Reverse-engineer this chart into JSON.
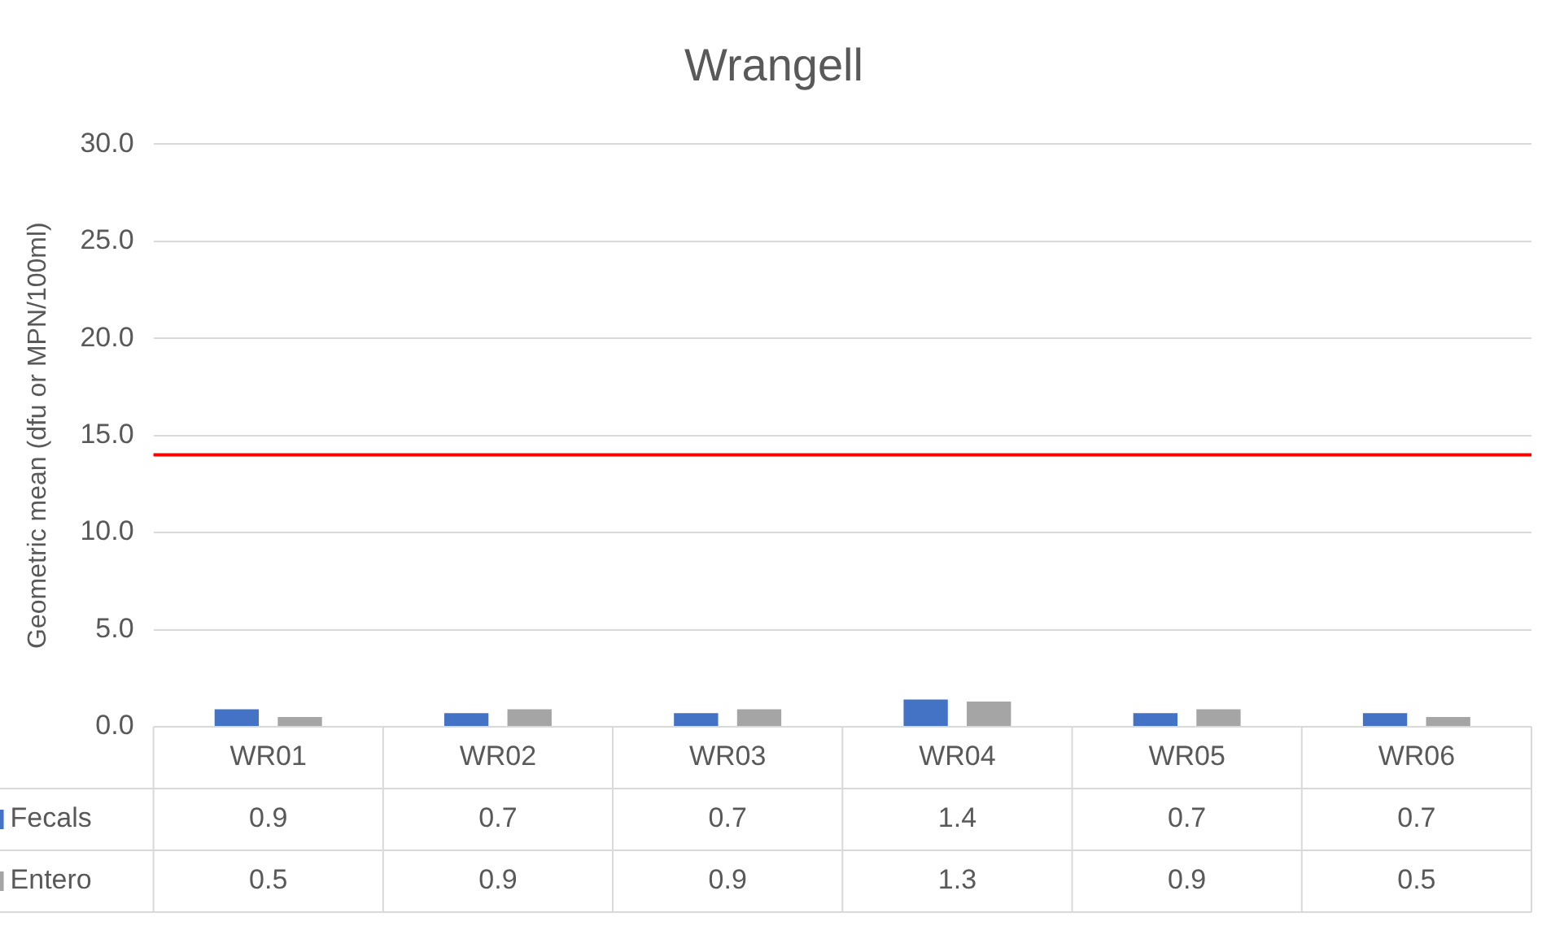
{
  "chart_data": {
    "type": "bar",
    "title": "Wrangell",
    "ylabel": "Geometric mean (dfu or MPN/100ml)",
    "categories": [
      "WR01",
      "WR02",
      "WR03",
      "WR04",
      "WR05",
      "WR06"
    ],
    "series": [
      {
        "name": "Fecals",
        "color": "#4472c4",
        "values": [
          0.9,
          0.7,
          0.7,
          1.4,
          0.7,
          0.7
        ]
      },
      {
        "name": "Entero",
        "color": "#a5a5a5",
        "values": [
          0.5,
          0.9,
          0.9,
          1.3,
          0.9,
          0.5
        ]
      }
    ],
    "ylim": [
      0,
      30
    ],
    "yticks": [
      {
        "value": 0,
        "label": "0.0"
      },
      {
        "value": 5,
        "label": "5.0"
      },
      {
        "value": 10,
        "label": "10.0"
      },
      {
        "value": 15,
        "label": "15.0"
      },
      {
        "value": 20,
        "label": "20.0"
      },
      {
        "value": 25,
        "label": "25.0"
      },
      {
        "value": 30,
        "label": "30.0"
      }
    ],
    "ref_lines": [
      {
        "axis": "y",
        "value": 14,
        "color": "#ff0000"
      }
    ],
    "grid": "y",
    "legend": "bottom",
    "data_labels": true
  }
}
